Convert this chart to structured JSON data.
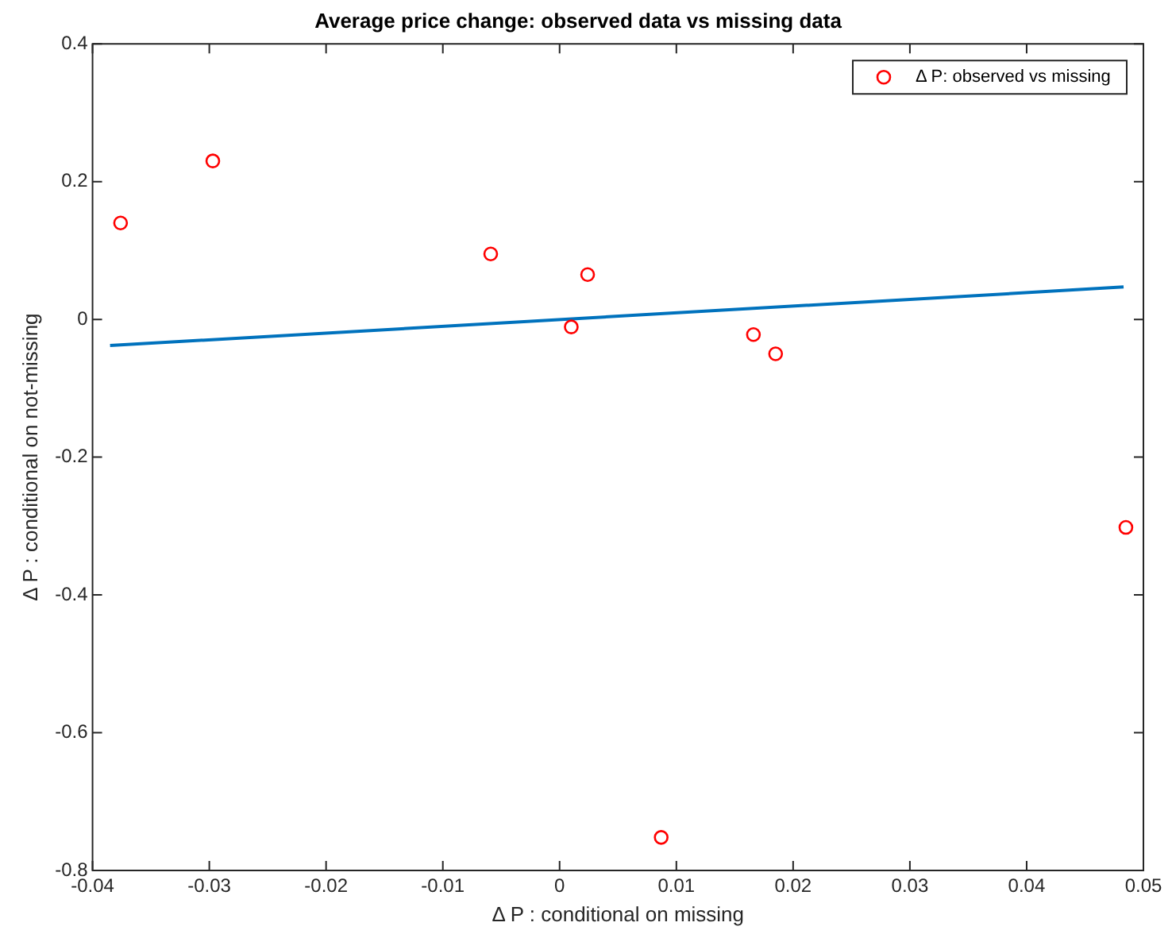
{
  "chart_data": {
    "type": "scatter",
    "title": "Average price change: observed data vs missing data",
    "xlabel": "Δ P : conditional on missing",
    "ylabel": "Δ P : conditional on not-missing",
    "xlim": [
      -0.04,
      0.05
    ],
    "xticks": [
      -0.04,
      -0.03,
      -0.02,
      -0.01,
      0,
      0.01,
      0.02,
      0.03,
      0.04,
      0.05
    ],
    "ylim": [
      -0.8,
      0.4
    ],
    "yticks": [
      -0.8,
      -0.6,
      -0.4,
      -0.2,
      0,
      0.2,
      0.4
    ],
    "grid": false,
    "legend": "top right",
    "marker": "circle",
    "series": [
      {
        "name": "Δ P: observed vs missing",
        "color": "#ff0000",
        "x": [
          -0.0376,
          -0.0297,
          -0.0059,
          0.001,
          0.0024,
          0.0166,
          0.0185,
          0.0087,
          0.0485
        ],
        "values": [
          0.14,
          0.23,
          0.095,
          -0.011,
          0.065,
          -0.022,
          -0.05,
          -0.752,
          -0.302
        ]
      },
      {
        "type": "line",
        "color": "#0072bd",
        "marker": "none",
        "x": [
          -0.0385,
          0.0483
        ],
        "values": [
          -0.038,
          0.047
        ]
      }
    ]
  }
}
